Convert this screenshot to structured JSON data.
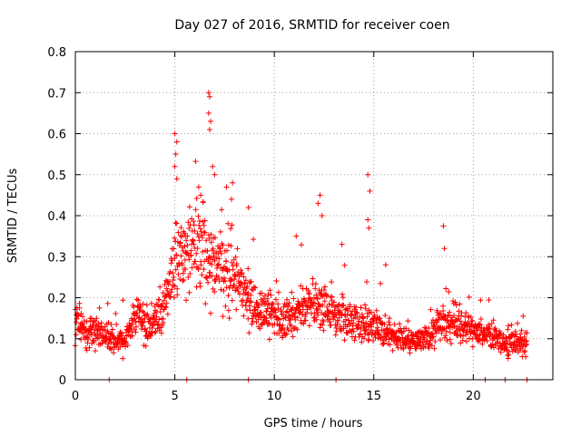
{
  "chart_data": {
    "type": "scatter",
    "title": "Day 027 of 2016, SRMTID for receiver coen",
    "xlabel": "GPS time / hours",
    "ylabel": "SRMTID / TECUs",
    "xlim": [
      0,
      24
    ],
    "ylim": [
      0,
      0.8
    ],
    "xticks": [
      0,
      5,
      10,
      15,
      20
    ],
    "xtick_labels": [
      "0",
      "5",
      "10",
      "15",
      "20"
    ],
    "yticks": [
      0,
      0.1,
      0.2,
      0.3,
      0.4,
      0.5,
      0.6,
      0.7,
      0.8
    ],
    "ytick_labels": [
      "0",
      "0.1",
      "0.2",
      "0.3",
      "0.4",
      "0.5",
      "0.6",
      "0.7",
      "0.8"
    ],
    "grid": true,
    "series": [
      {
        "name": "SRMTID",
        "color": "#ff0000",
        "marker": "plus",
        "profile": [
          [
            0.0,
            0.15
          ],
          [
            0.5,
            0.11
          ],
          [
            1.0,
            0.12
          ],
          [
            1.5,
            0.11
          ],
          [
            2.0,
            0.1
          ],
          [
            2.5,
            0.09
          ],
          [
            3.0,
            0.16
          ],
          [
            3.5,
            0.13
          ],
          [
            4.0,
            0.14
          ],
          [
            4.5,
            0.18
          ],
          [
            5.0,
            0.28
          ],
          [
            5.5,
            0.31
          ],
          [
            6.0,
            0.33
          ],
          [
            6.5,
            0.32
          ],
          [
            7.0,
            0.29
          ],
          [
            7.5,
            0.27
          ],
          [
            8.0,
            0.25
          ],
          [
            8.5,
            0.22
          ],
          [
            9.0,
            0.18
          ],
          [
            9.5,
            0.17
          ],
          [
            10.0,
            0.15
          ],
          [
            10.5,
            0.14
          ],
          [
            11.0,
            0.17
          ],
          [
            11.5,
            0.18
          ],
          [
            12.0,
            0.19
          ],
          [
            12.5,
            0.18
          ],
          [
            13.0,
            0.16
          ],
          [
            13.5,
            0.15
          ],
          [
            14.0,
            0.14
          ],
          [
            14.5,
            0.14
          ],
          [
            15.0,
            0.13
          ],
          [
            15.5,
            0.12
          ],
          [
            16.0,
            0.11
          ],
          [
            16.5,
            0.1
          ],
          [
            17.0,
            0.09
          ],
          [
            17.5,
            0.1
          ],
          [
            18.0,
            0.12
          ],
          [
            18.5,
            0.13
          ],
          [
            19.0,
            0.14
          ],
          [
            19.5,
            0.13
          ],
          [
            20.0,
            0.12
          ],
          [
            20.5,
            0.11
          ],
          [
            21.0,
            0.1
          ],
          [
            21.5,
            0.09
          ],
          [
            22.0,
            0.09
          ],
          [
            22.7,
            0.09
          ]
        ],
        "highlights": [
          [
            5.0,
            0.6
          ],
          [
            5.1,
            0.58
          ],
          [
            5.05,
            0.55
          ],
          [
            5.0,
            0.52
          ],
          [
            5.1,
            0.49
          ],
          [
            6.7,
            0.7
          ],
          [
            6.75,
            0.69
          ],
          [
            6.7,
            0.65
          ],
          [
            6.8,
            0.63
          ],
          [
            6.75,
            0.61
          ],
          [
            6.2,
            0.47
          ],
          [
            6.3,
            0.45
          ],
          [
            6.9,
            0.52
          ],
          [
            7.0,
            0.5
          ],
          [
            7.6,
            0.47
          ],
          [
            7.9,
            0.48
          ],
          [
            7.85,
            0.44
          ],
          [
            12.3,
            0.45
          ],
          [
            12.2,
            0.43
          ],
          [
            12.4,
            0.4
          ],
          [
            14.7,
            0.5
          ],
          [
            14.8,
            0.46
          ],
          [
            14.7,
            0.39
          ],
          [
            14.75,
            0.37
          ],
          [
            18.5,
            0.375
          ],
          [
            18.55,
            0.32
          ],
          [
            15.6,
            0.28
          ],
          [
            13.4,
            0.33
          ],
          [
            11.1,
            0.35
          ],
          [
            8.7,
            0.42
          ],
          [
            1.7,
            0.0
          ],
          [
            5.6,
            0.0
          ],
          [
            8.7,
            0.0
          ],
          [
            13.1,
            0.0
          ],
          [
            20.6,
            0.0
          ],
          [
            21.6,
            0.0
          ],
          [
            22.7,
            0.0
          ]
        ]
      }
    ]
  }
}
